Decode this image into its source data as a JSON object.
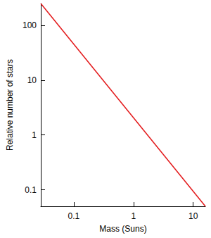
{
  "chart_data": {
    "type": "line",
    "x_label": "Mass (Suns)",
    "y_label": "Relative number of stars",
    "x": [
      0.028,
      16
    ],
    "values": [
      250,
      0.05
    ],
    "color": "#e31a1c",
    "log": true,
    "xlim": [
      0.028,
      16
    ],
    "ylim": [
      0.05,
      250
    ],
    "xticks": [
      0.1,
      1,
      10
    ],
    "yticks": [
      0.1,
      1,
      10,
      100
    ],
    "grid": false
  }
}
